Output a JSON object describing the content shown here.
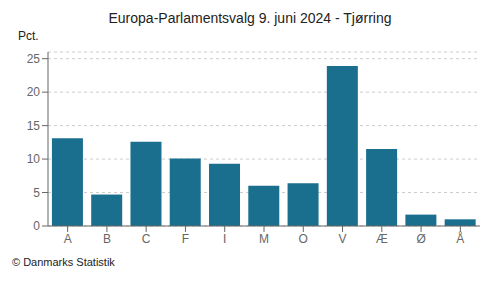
{
  "chart_data": {
    "type": "bar",
    "title": "Europa-Parlamentsvalg 9. juni 2024 - Tjørring",
    "ylabel": "Pct.",
    "footer": "© Danmarks Statistik",
    "categories": [
      "A",
      "B",
      "C",
      "F",
      "I",
      "M",
      "O",
      "V",
      "Æ",
      "Ø",
      "Å"
    ],
    "values": [
      13.1,
      4.7,
      12.6,
      10.1,
      9.3,
      6.0,
      6.4,
      23.9,
      11.5,
      1.7,
      1.0
    ],
    "color": "#1a6e8e",
    "ylim": [
      0,
      26
    ],
    "yticks": [
      0,
      5,
      10,
      15,
      20,
      25
    ],
    "grid": true
  }
}
